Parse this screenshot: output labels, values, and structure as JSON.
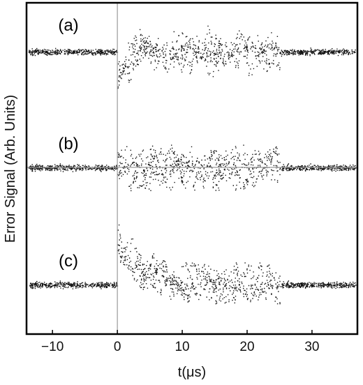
{
  "chart_data": {
    "type": "scatter",
    "title": "",
    "xlabel": "t(μs)",
    "ylabel": "Error Signal (Arb. Units)",
    "xlim": [
      -14,
      37
    ],
    "x_ticks": [
      -10,
      0,
      10,
      20,
      30
    ],
    "y_ticks": [],
    "grid": false,
    "legend": "none",
    "reference_lines": [
      {
        "orientation": "vertical",
        "x": 0
      },
      {
        "orientation": "horizontal",
        "through": "(b) baseline"
      }
    ],
    "panels": [
      {
        "label": "(a)",
        "noise_window_us": [
          0,
          25
        ],
        "baseline_noise": 0.05,
        "burst_amplitude": 0.85,
        "initial_transient": -0.8,
        "transient_decay_us": 1.5
      },
      {
        "label": "(b)",
        "noise_window_us": [
          0,
          25
        ],
        "baseline_noise": 0.05,
        "burst_amplitude": 1.0,
        "initial_transient": 0,
        "transient_decay_us": 0
      },
      {
        "label": "(c)",
        "noise_window_us": [
          0,
          25
        ],
        "baseline_noise": 0.05,
        "burst_amplitude": 0.75,
        "initial_transient": 1.3,
        "transient_decay_us": 4
      }
    ],
    "color": "#111111"
  }
}
